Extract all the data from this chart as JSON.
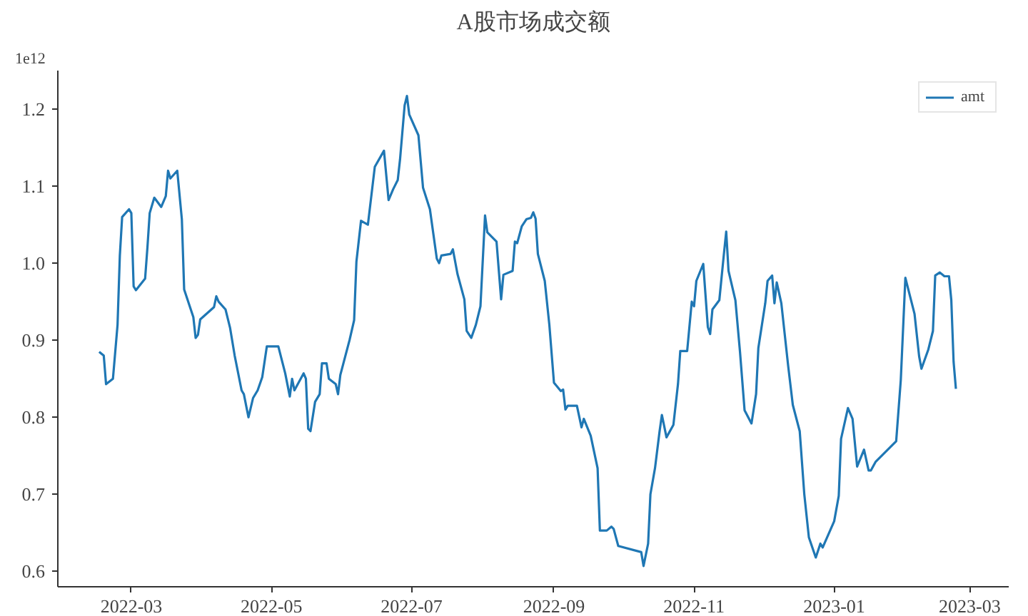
{
  "chart_data": {
    "type": "line",
    "title": "A股市场成交额",
    "annotations": [
      "1e12"
    ],
    "xlim": [
      "2022-01-28",
      "2023-03-18"
    ],
    "ylim": [
      0.58,
      1.25
    ],
    "xticks": [
      {
        "value": "2022-03-01",
        "label": "2022-03"
      },
      {
        "value": "2022-05-01",
        "label": "2022-05"
      },
      {
        "value": "2022-07-01",
        "label": "2022-07"
      },
      {
        "value": "2022-09-01",
        "label": "2022-09"
      },
      {
        "value": "2022-11-01",
        "label": "2022-11"
      },
      {
        "value": "2023-01-01",
        "label": "2023-01"
      },
      {
        "value": "2023-03-01",
        "label": "2023-03"
      }
    ],
    "yticks": [
      {
        "value": 0.6,
        "label": "0.6"
      },
      {
        "value": 0.7,
        "label": "0.7"
      },
      {
        "value": 0.8,
        "label": "0.8"
      },
      {
        "value": 0.9,
        "label": "0.9"
      },
      {
        "value": 1.0,
        "label": "1.0"
      },
      {
        "value": 1.1,
        "label": "1.1"
      },
      {
        "value": 1.2,
        "label": "1.2"
      }
    ],
    "grid": false,
    "legend": "top right",
    "marker": "none",
    "line_style": "solid",
    "x": [
      "2022-02-15",
      "2022-02-17",
      "2022-02-18",
      "2022-02-21",
      "2022-02-23",
      "2022-02-24",
      "2022-02-25",
      "2022-02-28",
      "2022-03-01",
      "2022-03-02",
      "2022-03-03",
      "2022-03-07",
      "2022-03-08",
      "2022-03-09",
      "2022-03-11",
      "2022-03-14",
      "2022-03-16",
      "2022-03-17",
      "2022-03-18",
      "2022-03-21",
      "2022-03-23",
      "2022-03-24",
      "2022-03-28",
      "2022-03-29",
      "2022-03-30",
      "2022-03-31",
      "2022-04-06",
      "2022-04-07",
      "2022-04-08",
      "2022-04-11",
      "2022-04-13",
      "2022-04-15",
      "2022-04-18",
      "2022-04-19",
      "2022-04-21",
      "2022-04-23",
      "2022-04-25",
      "2022-04-27",
      "2022-04-29",
      "2022-05-04",
      "2022-05-07",
      "2022-05-09",
      "2022-05-10",
      "2022-05-11",
      "2022-05-15",
      "2022-05-16",
      "2022-05-17",
      "2022-05-18",
      "2022-05-20",
      "2022-05-22",
      "2022-05-23",
      "2022-05-25",
      "2022-05-26",
      "2022-05-29",
      "2022-05-30",
      "2022-05-31",
      "2022-06-04",
      "2022-06-06",
      "2022-06-07",
      "2022-06-09",
      "2022-06-12",
      "2022-06-14",
      "2022-06-15",
      "2022-06-19",
      "2022-06-21",
      "2022-06-23",
      "2022-06-25",
      "2022-06-26",
      "2022-06-28",
      "2022-06-29",
      "2022-06-30",
      "2022-07-04",
      "2022-07-06",
      "2022-07-09",
      "2022-07-12",
      "2022-07-13",
      "2022-07-14",
      "2022-07-18",
      "2022-07-19",
      "2022-07-21",
      "2022-07-24",
      "2022-07-25",
      "2022-07-27",
      "2022-07-29",
      "2022-07-31",
      "2022-08-02",
      "2022-08-03",
      "2022-08-07",
      "2022-08-09",
      "2022-08-10",
      "2022-08-14",
      "2022-08-15",
      "2022-08-16",
      "2022-08-18",
      "2022-08-20",
      "2022-08-22",
      "2022-08-23",
      "2022-08-24",
      "2022-08-25",
      "2022-08-28",
      "2022-08-30",
      "2022-09-01",
      "2022-09-04",
      "2022-09-05",
      "2022-09-06",
      "2022-09-07",
      "2022-09-11",
      "2022-09-13",
      "2022-09-14",
      "2022-09-17",
      "2022-09-20",
      "2022-09-21",
      "2022-09-24",
      "2022-09-26",
      "2022-09-27",
      "2022-09-29",
      "2022-10-09",
      "2022-10-10",
      "2022-10-12",
      "2022-10-13",
      "2022-10-15",
      "2022-10-17",
      "2022-10-18",
      "2022-10-20",
      "2022-10-23",
      "2022-10-25",
      "2022-10-26",
      "2022-10-29",
      "2022-10-31",
      "2022-11-01",
      "2022-11-02",
      "2022-11-05",
      "2022-11-07",
      "2022-11-08",
      "2022-11-09",
      "2022-11-12",
      "2022-11-14",
      "2022-11-15",
      "2022-11-16",
      "2022-11-19",
      "2022-11-21",
      "2022-11-23",
      "2022-11-26",
      "2022-11-28",
      "2022-11-29",
      "2022-12-02",
      "2022-12-03",
      "2022-12-05",
      "2022-12-06",
      "2022-12-07",
      "2022-12-09",
      "2022-12-12",
      "2022-12-14",
      "2022-12-17",
      "2022-12-19",
      "2022-12-21",
      "2022-12-24",
      "2022-12-26",
      "2022-12-27",
      "2023-01-01",
      "2023-01-03",
      "2023-01-04",
      "2023-01-07",
      "2023-01-09",
      "2023-01-11",
      "2023-01-14",
      "2023-01-16",
      "2023-01-17",
      "2023-01-19",
      "2023-01-28",
      "2023-01-30",
      "2023-02-01",
      "2023-02-05",
      "2023-02-07",
      "2023-02-08",
      "2023-02-11",
      "2023-02-13",
      "2023-02-14",
      "2023-02-16",
      "2023-02-18",
      "2023-02-20",
      "2023-02-21",
      "2023-02-22",
      "2023-02-23"
    ],
    "series": [
      {
        "name": "amt",
        "color": "#1f77b4",
        "values": [
          0.885,
          0.88,
          0.843,
          0.85,
          0.92,
          1.01,
          1.06,
          1.07,
          1.065,
          0.97,
          0.965,
          0.98,
          1.02,
          1.065,
          1.085,
          1.073,
          1.087,
          1.12,
          1.11,
          1.12,
          1.057,
          0.966,
          0.93,
          0.903,
          0.907,
          0.927,
          0.943,
          0.957,
          0.95,
          0.94,
          0.916,
          0.88,
          0.835,
          0.83,
          0.8,
          0.825,
          0.835,
          0.852,
          0.892,
          0.892,
          0.857,
          0.827,
          0.85,
          0.835,
          0.857,
          0.85,
          0.785,
          0.782,
          0.82,
          0.83,
          0.87,
          0.87,
          0.85,
          0.843,
          0.83,
          0.855,
          0.9,
          0.926,
          1.002,
          1.055,
          1.05,
          1.1,
          1.125,
          1.146,
          1.082,
          1.096,
          1.108,
          1.135,
          1.205,
          1.217,
          1.193,
          1.166,
          1.098,
          1.07,
          1.006,
          1.0,
          1.01,
          1.012,
          1.018,
          0.986,
          0.953,
          0.912,
          0.903,
          0.92,
          0.944,
          1.062,
          1.04,
          1.028,
          0.953,
          0.985,
          0.99,
          1.028,
          1.026,
          1.048,
          1.057,
          1.059,
          1.066,
          1.058,
          1.012,
          0.977,
          0.92,
          0.845,
          0.834,
          0.836,
          0.81,
          0.815,
          0.815,
          0.787,
          0.798,
          0.776,
          0.734,
          0.653,
          0.653,
          0.658,
          0.655,
          0.633,
          0.625,
          0.607,
          0.636,
          0.7,
          0.734,
          0.782,
          0.803,
          0.774,
          0.79,
          0.843,
          0.886,
          0.886,
          0.95,
          0.944,
          0.977,
          0.999,
          0.917,
          0.908,
          0.94,
          0.952,
          1.012,
          1.041,
          0.99,
          0.952,
          0.885,
          0.809,
          0.792,
          0.83,
          0.89,
          0.948,
          0.977,
          0.984,
          0.948,
          0.975,
          0.948,
          0.866,
          0.816,
          0.782,
          0.7,
          0.644,
          0.618,
          0.636,
          0.631,
          0.665,
          0.698,
          0.772,
          0.812,
          0.798,
          0.736,
          0.758,
          0.731,
          0.731,
          0.742,
          0.769,
          0.848,
          0.981,
          0.934,
          0.879,
          0.863,
          0.888,
          0.912,
          0.984,
          0.988,
          0.983,
          0.983,
          0.952,
          0.872,
          0.837
        ]
      }
    ]
  }
}
